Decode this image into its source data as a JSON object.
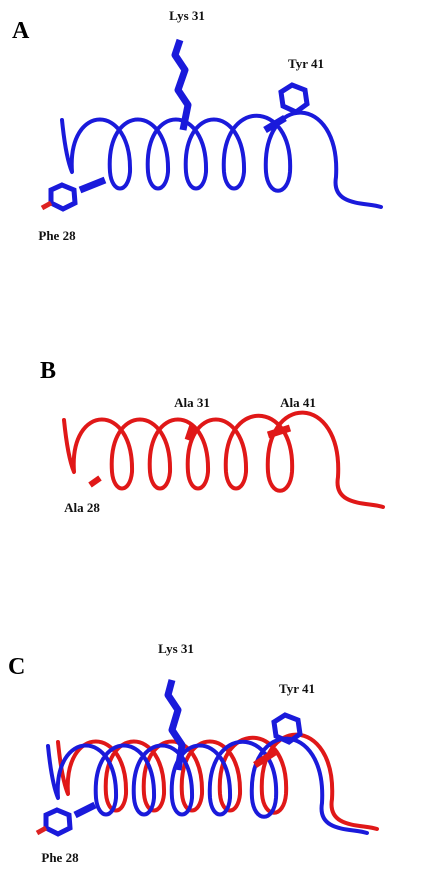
{
  "panels": [
    {
      "letter": "A",
      "labels": [
        "Lys 31",
        "Tyr 41",
        "Phe 28"
      ]
    },
    {
      "letter": "B",
      "labels": [
        "Ala 31",
        "Ala 41",
        "Ala 28"
      ]
    },
    {
      "letter": "C",
      "labels": [
        "Lys 31",
        "Tyr 41",
        "Phe 28"
      ]
    }
  ]
}
